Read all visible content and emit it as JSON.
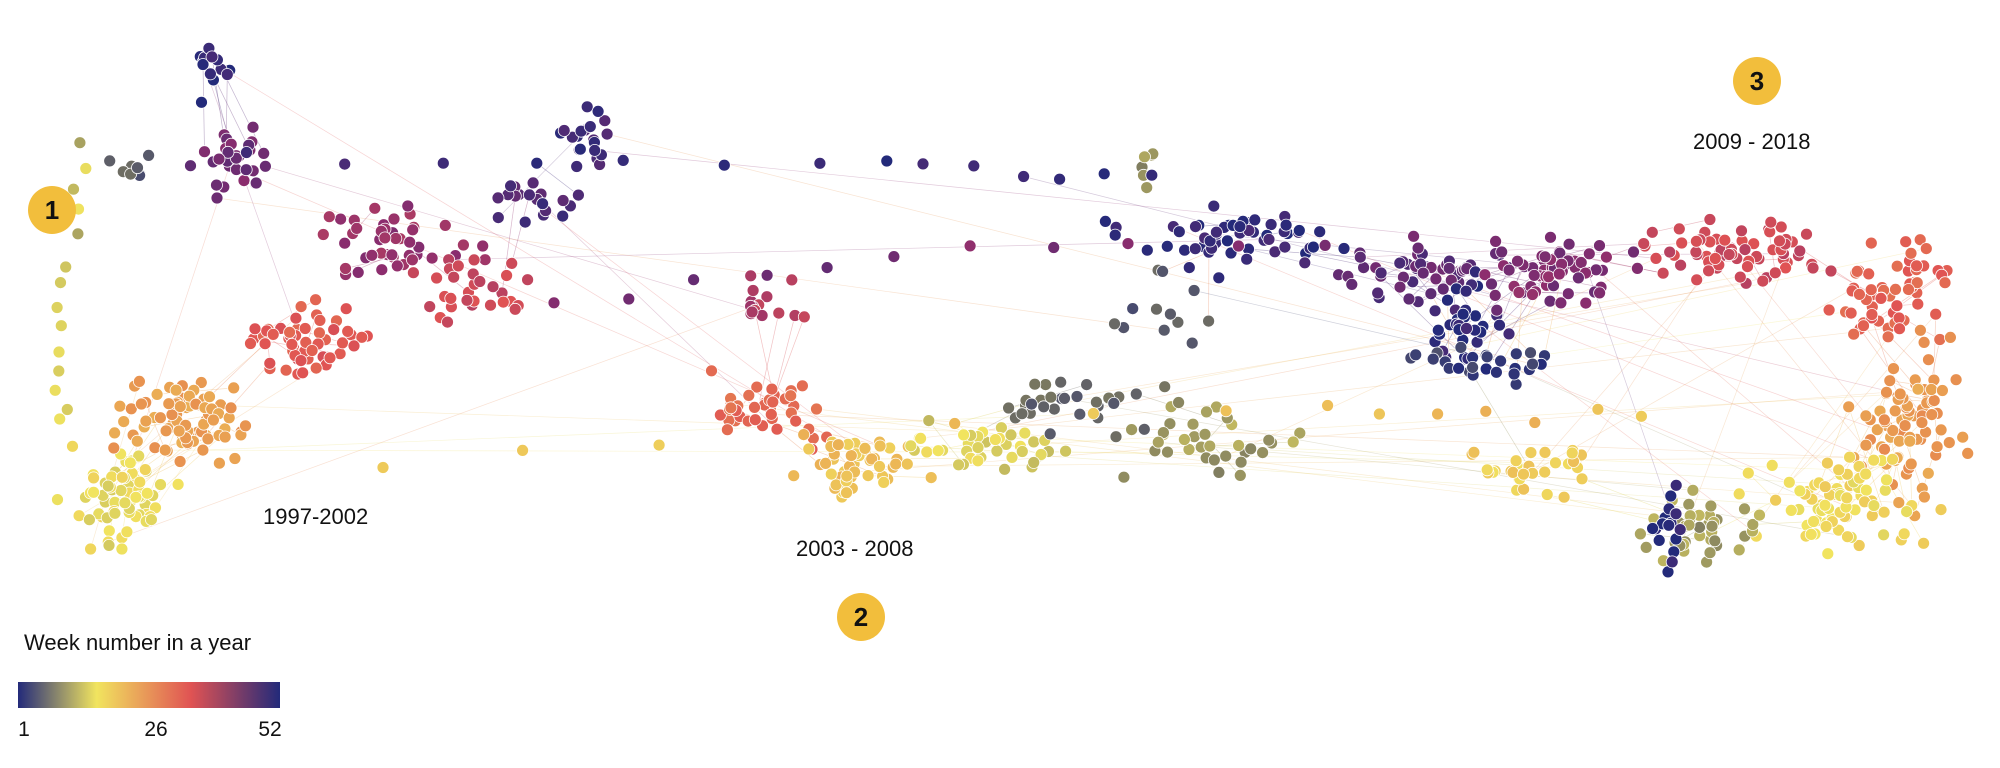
{
  "periods": [
    {
      "badge": "1",
      "label": "1997-2002"
    },
    {
      "badge": "2",
      "label": "2003 - 2008"
    },
    {
      "badge": "3",
      "label": "2009 - 2018"
    }
  ],
  "legend": {
    "title": "Week number in a year",
    "ticks": [
      "1",
      "26",
      "52"
    ],
    "colors": [
      "#232a7a",
      "#f1e45f",
      "#e05353",
      "#232a7a"
    ]
  },
  "colors": {
    "badge": "#f2be3c",
    "node_stroke": "#ffffff"
  }
}
